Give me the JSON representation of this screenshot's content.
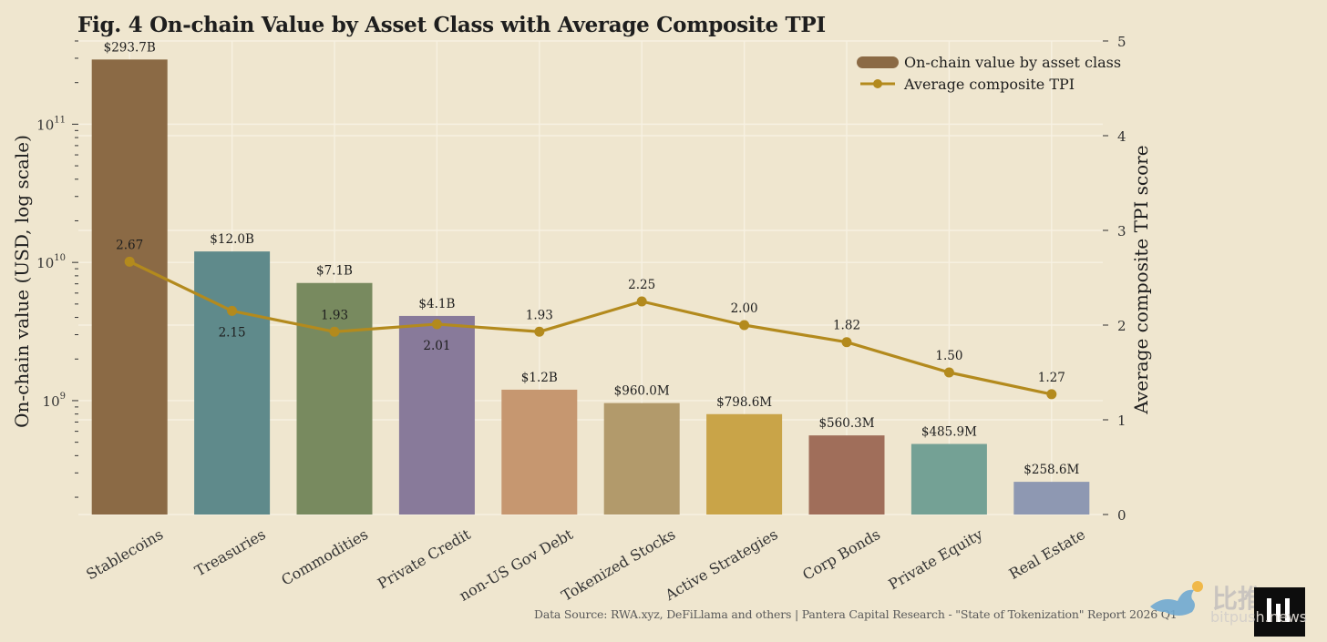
{
  "figure": {
    "title": "Fig. 4  On-chain Value by Asset Class with Average Composite TPI",
    "source": "Data Source: RWA.xyz, DeFiLlama and others | Pantera Capital Research - \"State of Tokenization\" Report 2026 Q1",
    "watermark_cn": "比推",
    "watermark_en": "bitpush.news"
  },
  "chart_data": {
    "type": "bar",
    "title": "Fig. 4  On-chain Value by Asset Class with Average Composite TPI",
    "categories": [
      "Stablecoins",
      "Treasuries",
      "Commodities",
      "Private Credit",
      "non-US Gov Debt",
      "Tokenized Stocks",
      "Active Strategies",
      "Corp Bonds",
      "Private Equity",
      "Real Estate"
    ],
    "series": [
      {
        "name": "On-chain value by asset class",
        "type": "bar",
        "axis": "left",
        "values": [
          293700000000,
          12000000000,
          7100000000,
          4100000000,
          1200000000,
          960000000,
          798600000,
          560300000,
          485900000,
          258600000
        ],
        "labels": [
          "$293.7B",
          "$12.0B",
          "$7.1B",
          "$4.1B",
          "$1.2B",
          "$960.0M",
          "$798.6M",
          "$560.3M",
          "$485.9M",
          "$258.6M"
        ],
        "colors": [
          "#8b6a45",
          "#5f8a8b",
          "#788a5f",
          "#887a9a",
          "#c69770",
          "#b29a6b",
          "#c9a448",
          "#a06e5a",
          "#74a195",
          "#8e98b2"
        ]
      },
      {
        "name": "Average composite TPI",
        "type": "line",
        "axis": "right",
        "values": [
          2.67,
          2.15,
          1.93,
          2.01,
          1.93,
          2.25,
          2.0,
          1.82,
          1.5,
          1.27
        ],
        "labels": [
          "2.67",
          "2.15",
          "1.93",
          "2.01",
          "1.93",
          "2.25",
          "2.00",
          "1.82",
          "1.50",
          "1.27"
        ],
        "color": "#b38a1d"
      }
    ],
    "ylabel": "On-chain value (USD, log scale)",
    "y_scale": "log",
    "ylim": [
      150000000,
      400000000000
    ],
    "yticks": [
      1000000000,
      10000000000,
      100000000000
    ],
    "ytick_labels": [
      {
        "base": "10",
        "exp": "9"
      },
      {
        "base": "10",
        "exp": "10"
      },
      {
        "base": "10",
        "exp": "11"
      }
    ],
    "y2label": "Average composite TPI score",
    "y2lim": [
      0,
      5
    ],
    "y2ticks": [
      "0",
      "1",
      "2",
      "3",
      "4",
      "5"
    ],
    "grid": true,
    "legend_position": "top-right"
  }
}
